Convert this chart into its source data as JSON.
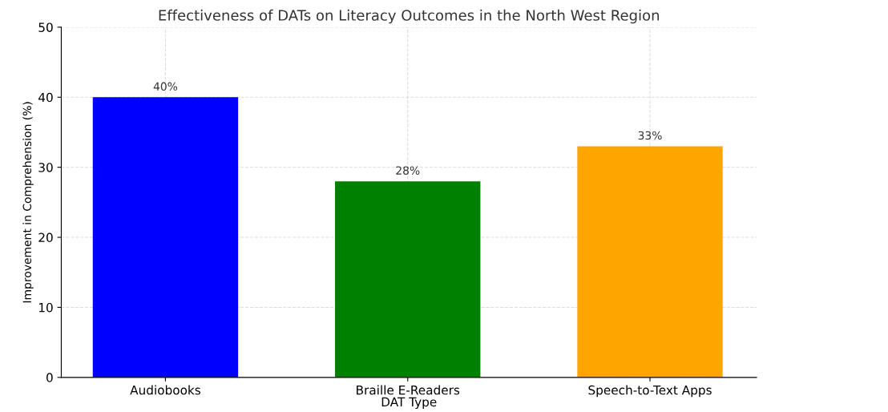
{
  "chart_data": {
    "type": "bar",
    "title": "Effectiveness of DATs on Literacy Outcomes in the North West Region",
    "xlabel": "DAT Type",
    "ylabel": "Improvement in Comprehension (%)",
    "categories": [
      "Audiobooks",
      "Braille E-Readers",
      "Speech-to-Text Apps"
    ],
    "values": [
      40,
      28,
      33
    ],
    "colors": [
      "#0000ff",
      "#008000",
      "#ffa500"
    ],
    "value_labels": [
      "40%",
      "28%",
      "33%"
    ],
    "ylim": [
      0,
      50
    ],
    "yticks": [
      0,
      10,
      20,
      30,
      40,
      50
    ],
    "grid": true
  }
}
